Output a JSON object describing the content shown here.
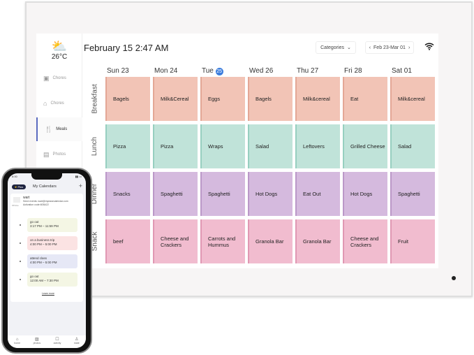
{
  "header": {
    "datetime": "February 15 2:47 AM",
    "categories_label": "Categories",
    "week_range": "Feb 23-Mar 01",
    "wifi_icon": "wifi-icon"
  },
  "weather": {
    "temperature": "26°C",
    "icon": "partly-cloudy-icon"
  },
  "sidebar": {
    "items": [
      {
        "label": "Chores",
        "icon": "calendar-icon"
      },
      {
        "label": "Chores",
        "icon": "chores-icon"
      },
      {
        "label": "Meals",
        "icon": "utensils-icon",
        "active": true
      },
      {
        "label": "Photos",
        "icon": "photos-icon"
      }
    ]
  },
  "days": [
    {
      "name": "Sun",
      "num": "23"
    },
    {
      "name": "Mon",
      "num": "24"
    },
    {
      "name": "Tue",
      "num": "25",
      "today": true
    },
    {
      "name": "Wed",
      "num": "26"
    },
    {
      "name": "Thu",
      "num": "27"
    },
    {
      "name": "Fri",
      "num": "28"
    },
    {
      "name": "Sat",
      "num": "01"
    }
  ],
  "meals": [
    {
      "label": "Breakfast",
      "color": "#f2c4b6",
      "edge": "#e3a796",
      "items": [
        "Bagels",
        "Milk&Cereal",
        "Eggs",
        "Bagels",
        "Milk&cereal",
        "Eat",
        "Milk&cereal"
      ]
    },
    {
      "label": "Lunch",
      "color": "#c0e3d9",
      "edge": "#97cfc0",
      "items": [
        "Pizza",
        "Pizza",
        "Wraps",
        "Salad",
        "Leftovers",
        "Grilled Cheese",
        "Salad"
      ]
    },
    {
      "label": "Dinner",
      "color": "#d5bade",
      "edge": "#bb98c8",
      "items": [
        "Snacks",
        "Spaghetti",
        "Spaghetti",
        "Hot Dogs",
        "Eat Out",
        "Hot Dogs",
        "Spaghetti"
      ]
    },
    {
      "label": "Snack",
      "color": "#f1bccf",
      "edge": "#e098b3",
      "items": [
        "beef",
        "Cheese and Crackers",
        "Carrots and Hummus",
        "Granola Bar",
        "Granola Bar",
        "Cheese and Crackers",
        "Fruit"
      ]
    }
  ],
  "phone": {
    "time": "6:00",
    "plus": "Plus",
    "title": "My Calendars",
    "add": "+",
    "calendar": {
      "name": "wart",
      "email_line": "Send events: wart@myeasecalendar.com",
      "code_line": "Activation code:605A22",
      "status": "Off-line"
    },
    "events": [
      {
        "title": "go out",
        "time": "3:17 PM – 11:59 PM",
        "color": "#f4f6e4"
      },
      {
        "title": "on a business trip",
        "time": "4:00 PM – 5:00 PM",
        "color": "#fbe3e3"
      },
      {
        "title": "attend class",
        "time": "4:00 PM – 5:00 PM",
        "color": "#e6e8f6"
      },
      {
        "title": "go out",
        "time": "12:00 AM – 7:30 PM",
        "color": "#f4f6e4"
      }
    ],
    "learn_more": "Learn more",
    "tabs": [
      {
        "label": "home",
        "icon": "home-icon",
        "active": true
      },
      {
        "label": "photos",
        "icon": "photos-icon"
      },
      {
        "label": "activity",
        "icon": "activity-icon"
      },
      {
        "label": "mate",
        "icon": "user-icon"
      }
    ]
  }
}
